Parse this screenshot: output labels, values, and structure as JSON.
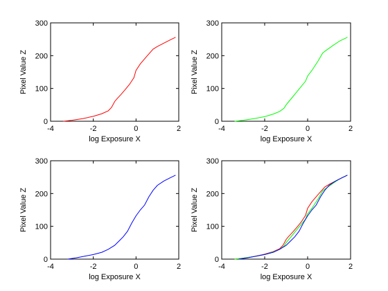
{
  "colors": {
    "red": "#ff0000",
    "green": "#00ff00",
    "blue": "#0000ff"
  },
  "chart_data": [
    {
      "type": "line",
      "xlabel": "log Exposure X",
      "ylabel": "Pixel Value Z",
      "xlim": [
        -4,
        2
      ],
      "ylim": [
        0,
        300
      ],
      "xticks": [
        "-4",
        "-2",
        "0",
        "2"
      ],
      "yticks": [
        "0",
        "100",
        "200",
        "300"
      ],
      "grid": false,
      "series": [
        {
          "color": "#ff0000",
          "x": [
            -3.4,
            -3.0,
            -2.5,
            -2.0,
            -1.6,
            -1.3,
            -1.15,
            -1.0,
            -0.9,
            -0.7,
            -0.5,
            -0.3,
            -0.1,
            0.0,
            0.2,
            0.5,
            0.8,
            1.0,
            1.3,
            1.6,
            1.85
          ],
          "y": [
            0,
            3,
            8,
            15,
            23,
            32,
            42,
            60,
            68,
            82,
            97,
            113,
            133,
            155,
            175,
            198,
            220,
            228,
            238,
            248,
            256
          ]
        }
      ]
    },
    {
      "type": "line",
      "xlabel": "log Exposure X",
      "ylabel": "Pixel Value Z",
      "xlim": [
        -4,
        2
      ],
      "ylim": [
        0,
        300
      ],
      "xticks": [
        "-4",
        "-2",
        "0",
        "2"
      ],
      "yticks": [
        "0",
        "100",
        "200",
        "300"
      ],
      "grid": false,
      "series": [
        {
          "color": "#00ff00",
          "x": [
            -3.4,
            -3.0,
            -2.5,
            -2.0,
            -1.6,
            -1.3,
            -1.1,
            -1.0,
            -0.9,
            -0.7,
            -0.5,
            -0.3,
            -0.1,
            0.0,
            0.2,
            0.5,
            0.7,
            0.9,
            1.2,
            1.5,
            1.85
          ],
          "y": [
            0,
            3,
            8,
            14,
            22,
            30,
            40,
            50,
            58,
            74,
            90,
            106,
            122,
            138,
            155,
            185,
            208,
            218,
            232,
            245,
            256
          ]
        }
      ]
    },
    {
      "type": "line",
      "xlabel": "log Exposure X",
      "ylabel": "Pixel Value Z",
      "xlim": [
        -4,
        2
      ],
      "ylim": [
        0,
        300
      ],
      "xticks": [
        "-4",
        "-2",
        "0",
        "2"
      ],
      "yticks": [
        "0",
        "100",
        "200",
        "300"
      ],
      "grid": false,
      "series": [
        {
          "color": "#0000ff",
          "x": [
            -3.2,
            -2.8,
            -2.4,
            -2.0,
            -1.6,
            -1.3,
            -1.0,
            -0.8,
            -0.6,
            -0.4,
            -0.2,
            0.0,
            0.2,
            0.4,
            0.6,
            0.8,
            1.0,
            1.3,
            1.6,
            1.85
          ],
          "y": [
            0,
            4,
            9,
            14,
            21,
            30,
            42,
            55,
            68,
            85,
            110,
            132,
            150,
            165,
            190,
            210,
            225,
            238,
            248,
            256
          ]
        }
      ]
    },
    {
      "type": "line",
      "xlabel": "log Exposure X",
      "ylabel": "Pixel Value Z",
      "xlim": [
        -4,
        2
      ],
      "ylim": [
        0,
        300
      ],
      "xticks": [
        "-4",
        "-2",
        "0",
        "2"
      ],
      "yticks": [
        "0",
        "100",
        "200",
        "300"
      ],
      "grid": false,
      "series": [
        {
          "color": "#ff0000",
          "x": [
            -3.4,
            -3.0,
            -2.5,
            -2.0,
            -1.6,
            -1.3,
            -1.15,
            -1.0,
            -0.9,
            -0.7,
            -0.5,
            -0.3,
            -0.1,
            0.0,
            0.2,
            0.5,
            0.8,
            1.0,
            1.3,
            1.6,
            1.85
          ],
          "y": [
            0,
            3,
            8,
            15,
            23,
            32,
            42,
            60,
            68,
            82,
            97,
            113,
            133,
            155,
            175,
            198,
            220,
            228,
            238,
            248,
            256
          ]
        },
        {
          "color": "#00ff00",
          "x": [
            -3.4,
            -3.0,
            -2.5,
            -2.0,
            -1.6,
            -1.3,
            -1.1,
            -1.0,
            -0.9,
            -0.7,
            -0.5,
            -0.3,
            -0.1,
            0.0,
            0.2,
            0.5,
            0.7,
            0.9,
            1.2,
            1.5,
            1.85
          ],
          "y": [
            0,
            3,
            8,
            14,
            22,
            30,
            40,
            50,
            58,
            74,
            90,
            106,
            122,
            138,
            155,
            185,
            208,
            218,
            232,
            245,
            256
          ]
        },
        {
          "color": "#0000ff",
          "x": [
            -3.2,
            -2.8,
            -2.4,
            -2.0,
            -1.6,
            -1.3,
            -1.0,
            -0.8,
            -0.6,
            -0.4,
            -0.2,
            0.0,
            0.2,
            0.4,
            0.6,
            0.8,
            1.0,
            1.3,
            1.6,
            1.85
          ],
          "y": [
            0,
            4,
            9,
            14,
            21,
            30,
            42,
            55,
            68,
            85,
            110,
            132,
            150,
            165,
            190,
            210,
            225,
            238,
            248,
            256
          ]
        }
      ]
    }
  ]
}
